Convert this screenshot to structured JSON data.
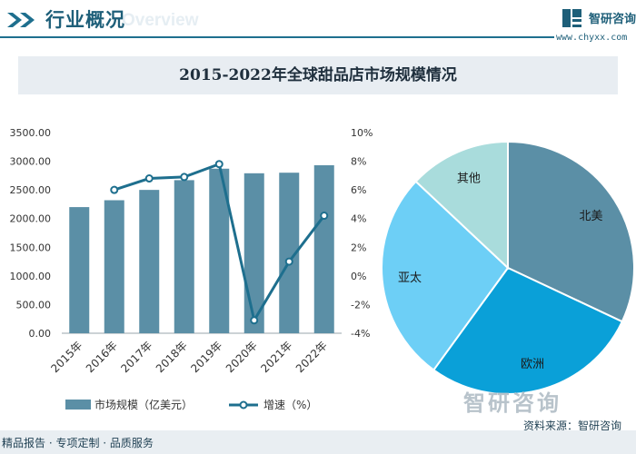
{
  "header": {
    "title": "行业概况",
    "watermark": "Overview"
  },
  "brand": {
    "name": "智研咨询",
    "url": "www.chyxx.com"
  },
  "footer": {
    "services": "精品报告 · 专项定制 · 品质服务",
    "source": "资料来源：智研咨询",
    "watermark": "智研咨询"
  },
  "colors": {
    "bar": "#5b8fa6",
    "line": "#1e6f8e",
    "north_america": "#5b8fa6",
    "europe": "#0aa0d8",
    "asia_pacific": "#6dcff6",
    "other": "#a9dcdc"
  },
  "chart_data": [
    {
      "type": "bar",
      "title": "2015-2022年全球甜品店市场规模情况",
      "categories": [
        "2015年",
        "2016年",
        "2017年",
        "2018年",
        "2019年",
        "2020年",
        "2021年",
        "2022年"
      ],
      "series": [
        {
          "name": "市场规模（亿美元）",
          "type": "bar",
          "axis": "left",
          "values": [
            2200,
            2320,
            2500,
            2670,
            2870,
            2790,
            2800,
            2930
          ]
        },
        {
          "name": "增速（%）",
          "type": "line",
          "axis": "right",
          "values": [
            null,
            6.0,
            6.8,
            6.9,
            7.8,
            -3.1,
            1.0,
            4.2
          ]
        }
      ],
      "ylim_left": [
        0,
        3500
      ],
      "yticks_left": [
        "0.00",
        "500.00",
        "1000.00",
        "1500.00",
        "2000.00",
        "2500.00",
        "3000.00",
        "3500.00"
      ],
      "ylim_right": [
        -4,
        10
      ],
      "yticks_right": [
        "-4%",
        "-2%",
        "0%",
        "2%",
        "4%",
        "6%",
        "8%",
        "10%"
      ],
      "legend": "bottom",
      "grid": false
    },
    {
      "type": "pie",
      "labels": [
        "北美",
        "欧洲",
        "亚太",
        "其他"
      ],
      "values": [
        32,
        28,
        27,
        13
      ],
      "legend": "none"
    }
  ]
}
